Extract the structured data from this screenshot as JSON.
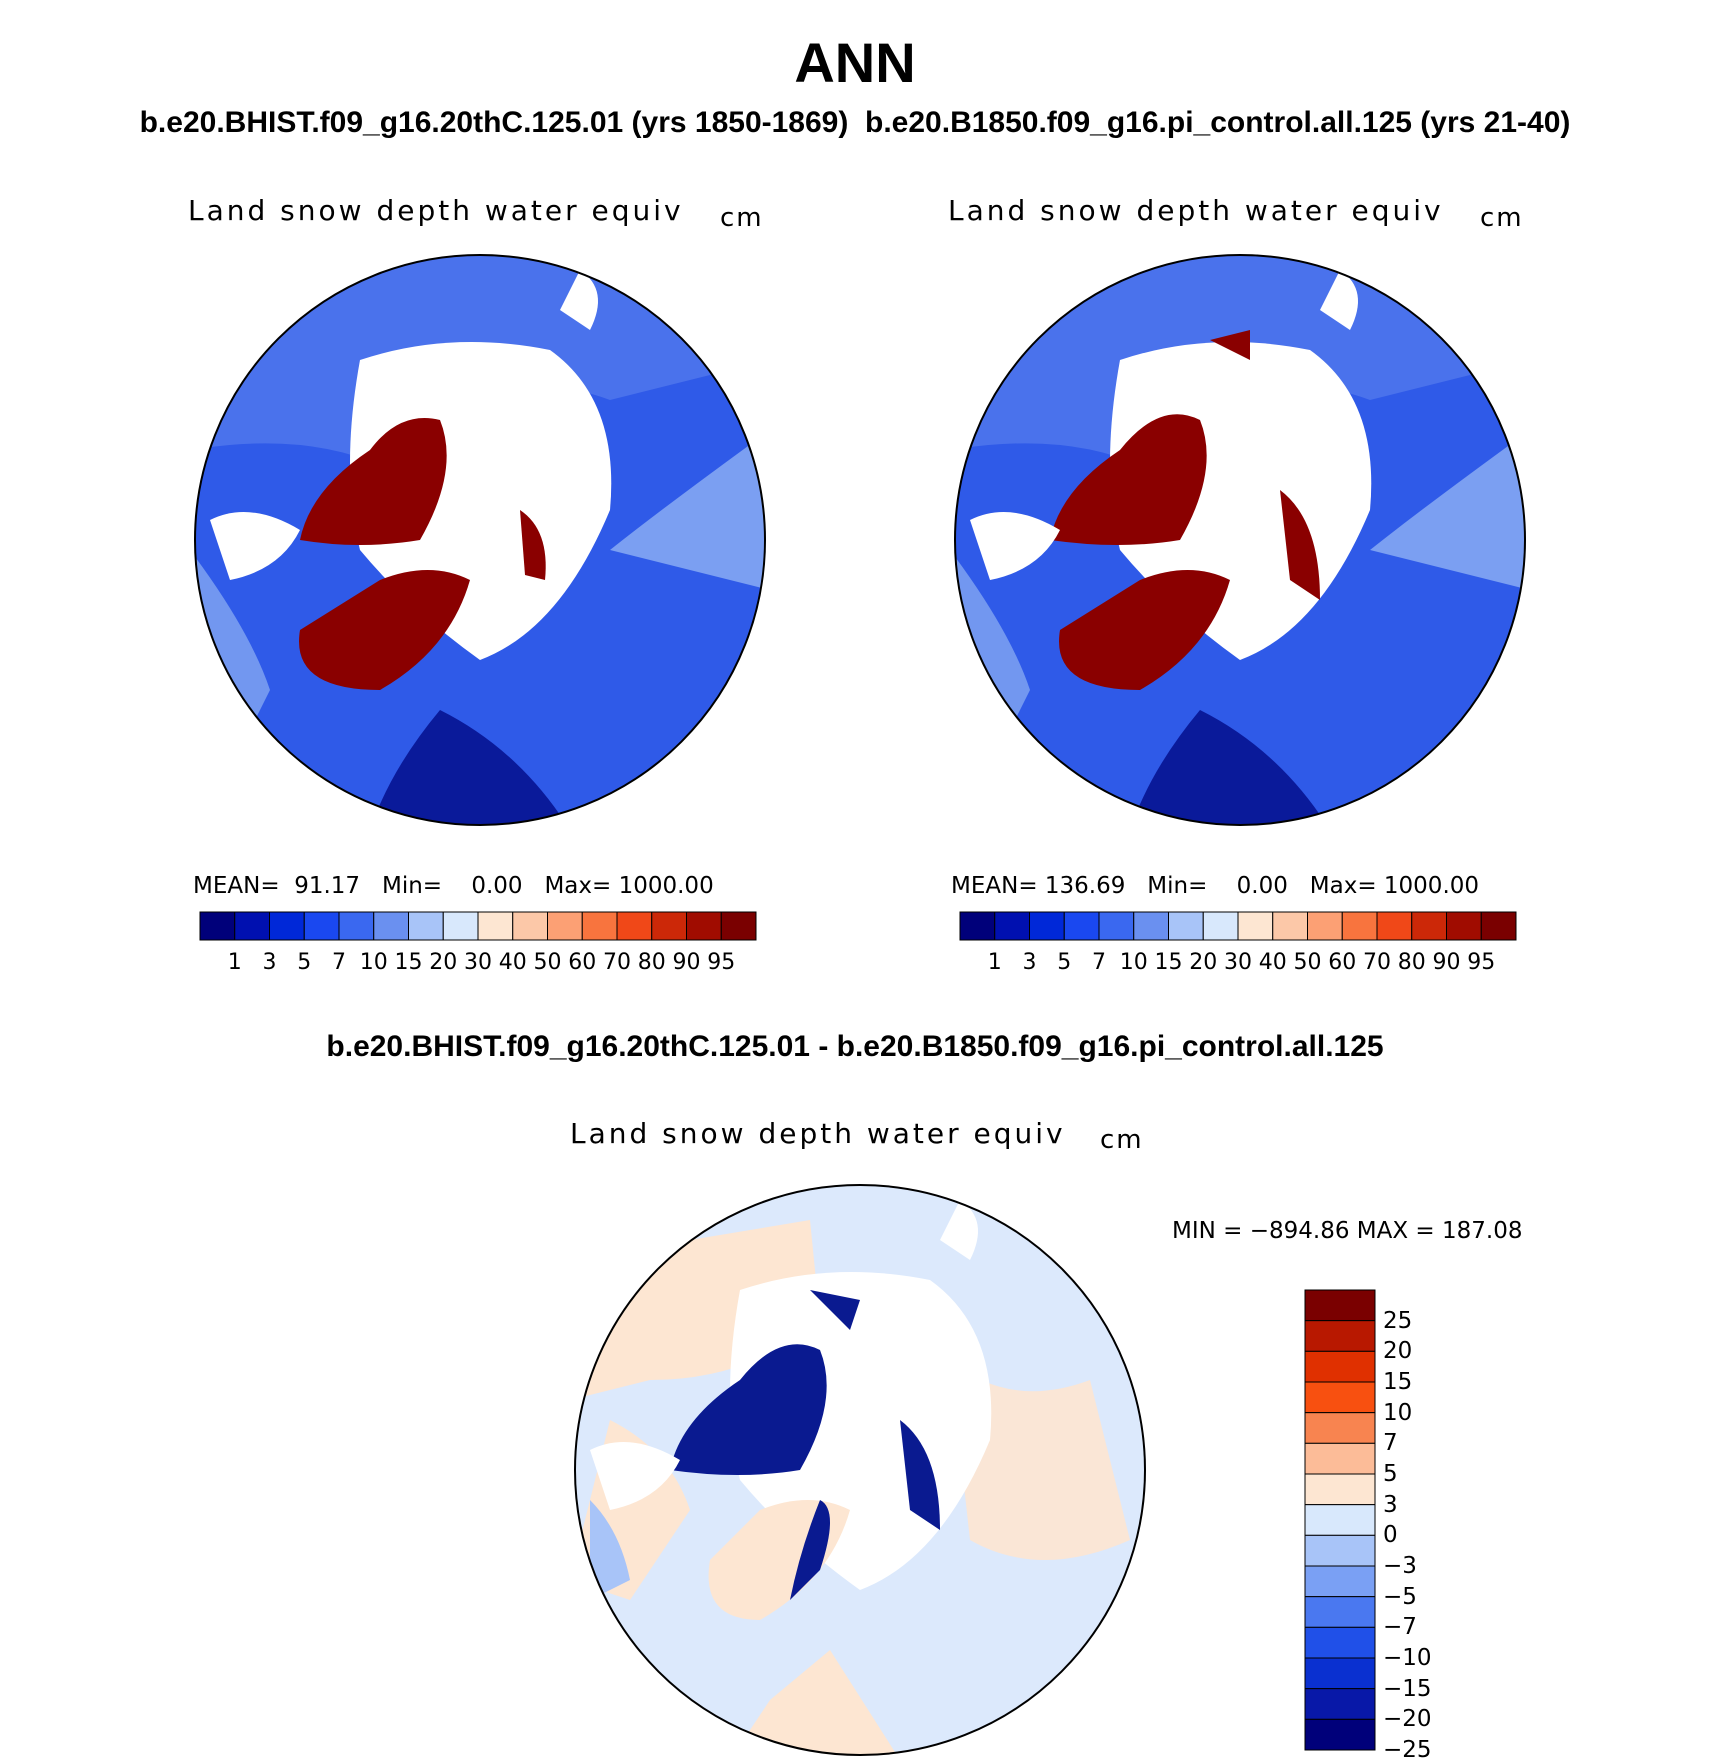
{
  "header": {
    "title": "ANN",
    "subtitle": "b.e20.BHIST.f09_g16.20thC.125.01 (yrs 1850-1869)  b.e20.B1850.f09_g16.pi_control.all.125 (yrs 21-40)",
    "diff_subtitle": "b.e20.BHIST.f09_g16.20thC.125.01 - b.e20.B1850.f09_g16.pi_control.all.125"
  },
  "panels": [
    {
      "id": "case1",
      "title": "Land snow depth water equiv",
      "units": "cm",
      "stats": "MEAN=  91.17   Min=    0.00   Max= 1000.00"
    },
    {
      "id": "case2",
      "title": "Land snow depth water equiv",
      "units": "cm",
      "stats": "MEAN= 136.69   Min=    0.00   Max= 1000.00"
    },
    {
      "id": "diff",
      "title": "Land snow depth water equiv",
      "units": "cm",
      "stats": "MIN = −894.86 MAX = 187.08"
    }
  ],
  "colorbar_abs": {
    "labels": [
      "1",
      "3",
      "5",
      "7",
      "10",
      "15",
      "20",
      "30",
      "40",
      "50",
      "60",
      "70",
      "80",
      "90",
      "95"
    ],
    "colors": [
      "#00007a",
      "#0010b0",
      "#0028d8",
      "#1a48f0",
      "#3a68f0",
      "#6a90f0",
      "#a8c4f8",
      "#d8e8fc",
      "#fde6d2",
      "#fcc8a8",
      "#fca074",
      "#f8743e",
      "#f04818",
      "#cc2808",
      "#a00c00",
      "#7a0000"
    ]
  },
  "colorbar_diff": {
    "labels": [
      "25",
      "20",
      "15",
      "10",
      "7",
      "5",
      "3",
      "0",
      "−3",
      "−5",
      "−7",
      "−10",
      "−15",
      "−20",
      "−25"
    ],
    "colors": [
      "#7a0000",
      "#b81800",
      "#e03000",
      "#f85010",
      "#f88450",
      "#fcbc98",
      "#fde6d2",
      "#d8e8fc",
      "#a8c4f8",
      "#7aa0f4",
      "#4a78f0",
      "#2050e8",
      "#0a30d0",
      "#0818a8",
      "#00007a"
    ]
  }
}
